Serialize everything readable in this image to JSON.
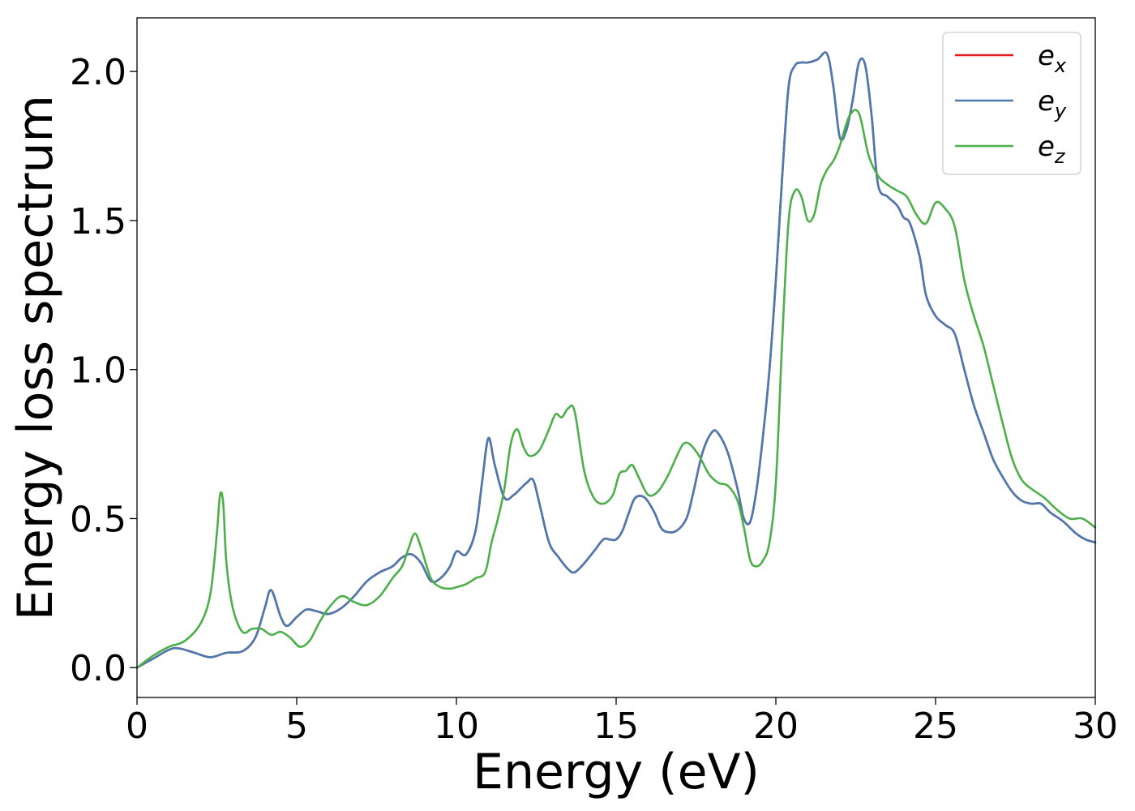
{
  "chart_data": {
    "type": "line",
    "title": "",
    "xlabel": "Energy (eV)",
    "ylabel": "Energy loss spectrum",
    "xlim": [
      0,
      30
    ],
    "ylim": [
      -0.1,
      2.18
    ],
    "xticks": [
      0,
      5,
      10,
      15,
      20,
      25,
      30
    ],
    "xtick_labels": [
      "0",
      "5",
      "10",
      "15",
      "20",
      "25",
      "30"
    ],
    "yticks": [
      0.0,
      0.5,
      1.0,
      1.5,
      2.0
    ],
    "ytick_labels": [
      "0.0",
      "0.5",
      "1.0",
      "1.5",
      "2.0"
    ],
    "grid": false,
    "legend_position": "top-right",
    "series": [
      {
        "name": "e",
        "subscript": "x",
        "color": "#e41a1c",
        "x": [
          0,
          0.5,
          1,
          1.3,
          1.8,
          2.3,
          2.8,
          3.3,
          3.7,
          4,
          4.2,
          4.5,
          4.7,
          5,
          5.3,
          5.6,
          6,
          6.4,
          6.8,
          7.2,
          7.6,
          8,
          8.3,
          8.6,
          8.9,
          9.2,
          9.5,
          9.8,
          10,
          10.3,
          10.6,
          10.8,
          11,
          11.2,
          11.5,
          11.8,
          12,
          12.2,
          12.4,
          12.6,
          12.9,
          13.2,
          13.5,
          13.7,
          14,
          14.3,
          14.6,
          14.8,
          15,
          15.2,
          15.4,
          15.6,
          15.9,
          16.2,
          16.4,
          16.6,
          16.9,
          17.2,
          17.4,
          17.7,
          18,
          18.2,
          18.5,
          18.8,
          19,
          19.2,
          19.4,
          19.6,
          19.8,
          20,
          20.2,
          20.4,
          20.6,
          20.8,
          21,
          21.3,
          21.6,
          21.8,
          22,
          22.2,
          22.4,
          22.6,
          22.8,
          23,
          23.2,
          23.5,
          23.8,
          24,
          24.2,
          24.5,
          24.7,
          25,
          25.3,
          25.6,
          25.9,
          26.2,
          26.5,
          26.8,
          27.1,
          27.4,
          27.7,
          28,
          28.3,
          28.6,
          29,
          29.4,
          29.7,
          30
        ],
        "y": [
          0.0,
          0.03,
          0.06,
          0.065,
          0.05,
          0.035,
          0.05,
          0.055,
          0.1,
          0.2,
          0.26,
          0.17,
          0.14,
          0.17,
          0.195,
          0.19,
          0.18,
          0.2,
          0.24,
          0.29,
          0.32,
          0.34,
          0.37,
          0.38,
          0.35,
          0.29,
          0.3,
          0.34,
          0.39,
          0.38,
          0.46,
          0.62,
          0.77,
          0.68,
          0.57,
          0.58,
          0.6,
          0.62,
          0.63,
          0.55,
          0.42,
          0.37,
          0.33,
          0.32,
          0.35,
          0.39,
          0.43,
          0.43,
          0.43,
          0.46,
          0.52,
          0.57,
          0.57,
          0.52,
          0.47,
          0.455,
          0.46,
          0.5,
          0.58,
          0.72,
          0.79,
          0.785,
          0.72,
          0.6,
          0.5,
          0.49,
          0.6,
          0.78,
          1.0,
          1.3,
          1.65,
          1.95,
          2.02,
          2.03,
          2.03,
          2.04,
          2.06,
          1.95,
          1.78,
          1.8,
          1.9,
          2.03,
          2.02,
          1.85,
          1.62,
          1.58,
          1.55,
          1.51,
          1.49,
          1.38,
          1.25,
          1.18,
          1.15,
          1.12,
          1.0,
          0.88,
          0.79,
          0.7,
          0.64,
          0.59,
          0.56,
          0.55,
          0.55,
          0.52,
          0.49,
          0.45,
          0.43,
          0.42
        ]
      },
      {
        "name": "e",
        "subscript": "y",
        "color": "#4a7ab0",
        "x": [
          0,
          0.5,
          1,
          1.3,
          1.8,
          2.3,
          2.8,
          3.3,
          3.7,
          4,
          4.2,
          4.5,
          4.7,
          5,
          5.3,
          5.6,
          6,
          6.4,
          6.8,
          7.2,
          7.6,
          8,
          8.3,
          8.6,
          8.9,
          9.2,
          9.5,
          9.8,
          10,
          10.3,
          10.6,
          10.8,
          11,
          11.2,
          11.5,
          11.8,
          12,
          12.2,
          12.4,
          12.6,
          12.9,
          13.2,
          13.5,
          13.7,
          14,
          14.3,
          14.6,
          14.8,
          15,
          15.2,
          15.4,
          15.6,
          15.9,
          16.2,
          16.4,
          16.6,
          16.9,
          17.2,
          17.4,
          17.7,
          18,
          18.2,
          18.5,
          18.8,
          19,
          19.2,
          19.4,
          19.6,
          19.8,
          20,
          20.2,
          20.4,
          20.6,
          20.8,
          21,
          21.3,
          21.6,
          21.8,
          22,
          22.2,
          22.4,
          22.6,
          22.8,
          23,
          23.2,
          23.5,
          23.8,
          24,
          24.2,
          24.5,
          24.7,
          25,
          25.3,
          25.6,
          25.9,
          26.2,
          26.5,
          26.8,
          27.1,
          27.4,
          27.7,
          28,
          28.3,
          28.6,
          29,
          29.4,
          29.7,
          30
        ],
        "y": [
          0.0,
          0.03,
          0.06,
          0.065,
          0.05,
          0.035,
          0.05,
          0.055,
          0.1,
          0.2,
          0.26,
          0.17,
          0.14,
          0.17,
          0.195,
          0.19,
          0.18,
          0.2,
          0.24,
          0.29,
          0.32,
          0.34,
          0.37,
          0.38,
          0.35,
          0.29,
          0.3,
          0.34,
          0.39,
          0.38,
          0.46,
          0.62,
          0.77,
          0.68,
          0.57,
          0.58,
          0.6,
          0.62,
          0.63,
          0.55,
          0.42,
          0.37,
          0.33,
          0.32,
          0.35,
          0.39,
          0.43,
          0.43,
          0.43,
          0.46,
          0.52,
          0.57,
          0.57,
          0.52,
          0.47,
          0.455,
          0.46,
          0.5,
          0.58,
          0.72,
          0.79,
          0.785,
          0.72,
          0.6,
          0.5,
          0.49,
          0.6,
          0.78,
          1.0,
          1.3,
          1.65,
          1.95,
          2.02,
          2.03,
          2.03,
          2.04,
          2.06,
          1.95,
          1.78,
          1.8,
          1.9,
          2.03,
          2.02,
          1.85,
          1.62,
          1.58,
          1.55,
          1.51,
          1.49,
          1.38,
          1.25,
          1.18,
          1.15,
          1.12,
          1.0,
          0.88,
          0.79,
          0.7,
          0.64,
          0.59,
          0.56,
          0.55,
          0.55,
          0.52,
          0.49,
          0.45,
          0.43,
          0.42
        ]
      },
      {
        "name": "e",
        "subscript": "z",
        "color": "#4daf4a",
        "x": [
          0,
          0.5,
          1,
          1.5,
          2,
          2.3,
          2.5,
          2.6,
          2.7,
          2.8,
          3,
          3.3,
          3.6,
          3.9,
          4.2,
          4.5,
          4.8,
          5.1,
          5.4,
          5.7,
          6,
          6.4,
          6.8,
          7.2,
          7.6,
          8,
          8.3,
          8.5,
          8.7,
          8.9,
          9.2,
          9.5,
          9.8,
          10,
          10.3,
          10.6,
          10.9,
          11.1,
          11.3,
          11.5,
          11.7,
          11.9,
          12.1,
          12.3,
          12.6,
          12.9,
          13.1,
          13.3,
          13.5,
          13.7,
          14,
          14.3,
          14.6,
          14.9,
          15.1,
          15.3,
          15.5,
          15.7,
          16,
          16.3,
          16.6,
          16.9,
          17.1,
          17.3,
          17.6,
          17.9,
          18.2,
          18.5,
          18.8,
          19,
          19.2,
          19.4,
          19.6,
          19.8,
          20,
          20.2,
          20.4,
          20.6,
          20.8,
          21,
          21.2,
          21.4,
          21.6,
          21.8,
          22,
          22.3,
          22.6,
          22.9,
          23.2,
          23.5,
          23.8,
          24.1,
          24.4,
          24.7,
          25,
          25.3,
          25.6,
          25.9,
          26.2,
          26.5,
          26.8,
          27.1,
          27.4,
          27.7,
          28,
          28.4,
          28.8,
          29.2,
          29.6,
          30
        ],
        "y": [
          0.0,
          0.04,
          0.07,
          0.09,
          0.15,
          0.25,
          0.45,
          0.58,
          0.55,
          0.35,
          0.2,
          0.12,
          0.13,
          0.13,
          0.11,
          0.12,
          0.1,
          0.07,
          0.09,
          0.15,
          0.2,
          0.24,
          0.22,
          0.21,
          0.24,
          0.3,
          0.34,
          0.4,
          0.45,
          0.4,
          0.3,
          0.27,
          0.265,
          0.27,
          0.28,
          0.3,
          0.32,
          0.42,
          0.5,
          0.6,
          0.75,
          0.8,
          0.74,
          0.71,
          0.73,
          0.8,
          0.85,
          0.84,
          0.87,
          0.86,
          0.66,
          0.57,
          0.55,
          0.58,
          0.65,
          0.66,
          0.68,
          0.64,
          0.58,
          0.59,
          0.64,
          0.71,
          0.75,
          0.75,
          0.71,
          0.65,
          0.62,
          0.61,
          0.56,
          0.47,
          0.36,
          0.34,
          0.36,
          0.42,
          0.62,
          1.1,
          1.5,
          1.6,
          1.58,
          1.5,
          1.52,
          1.62,
          1.67,
          1.7,
          1.75,
          1.85,
          1.86,
          1.72,
          1.65,
          1.62,
          1.6,
          1.58,
          1.52,
          1.49,
          1.56,
          1.54,
          1.48,
          1.3,
          1.18,
          1.08,
          0.95,
          0.82,
          0.7,
          0.63,
          0.6,
          0.57,
          0.53,
          0.5,
          0.5,
          0.47
        ]
      }
    ]
  }
}
